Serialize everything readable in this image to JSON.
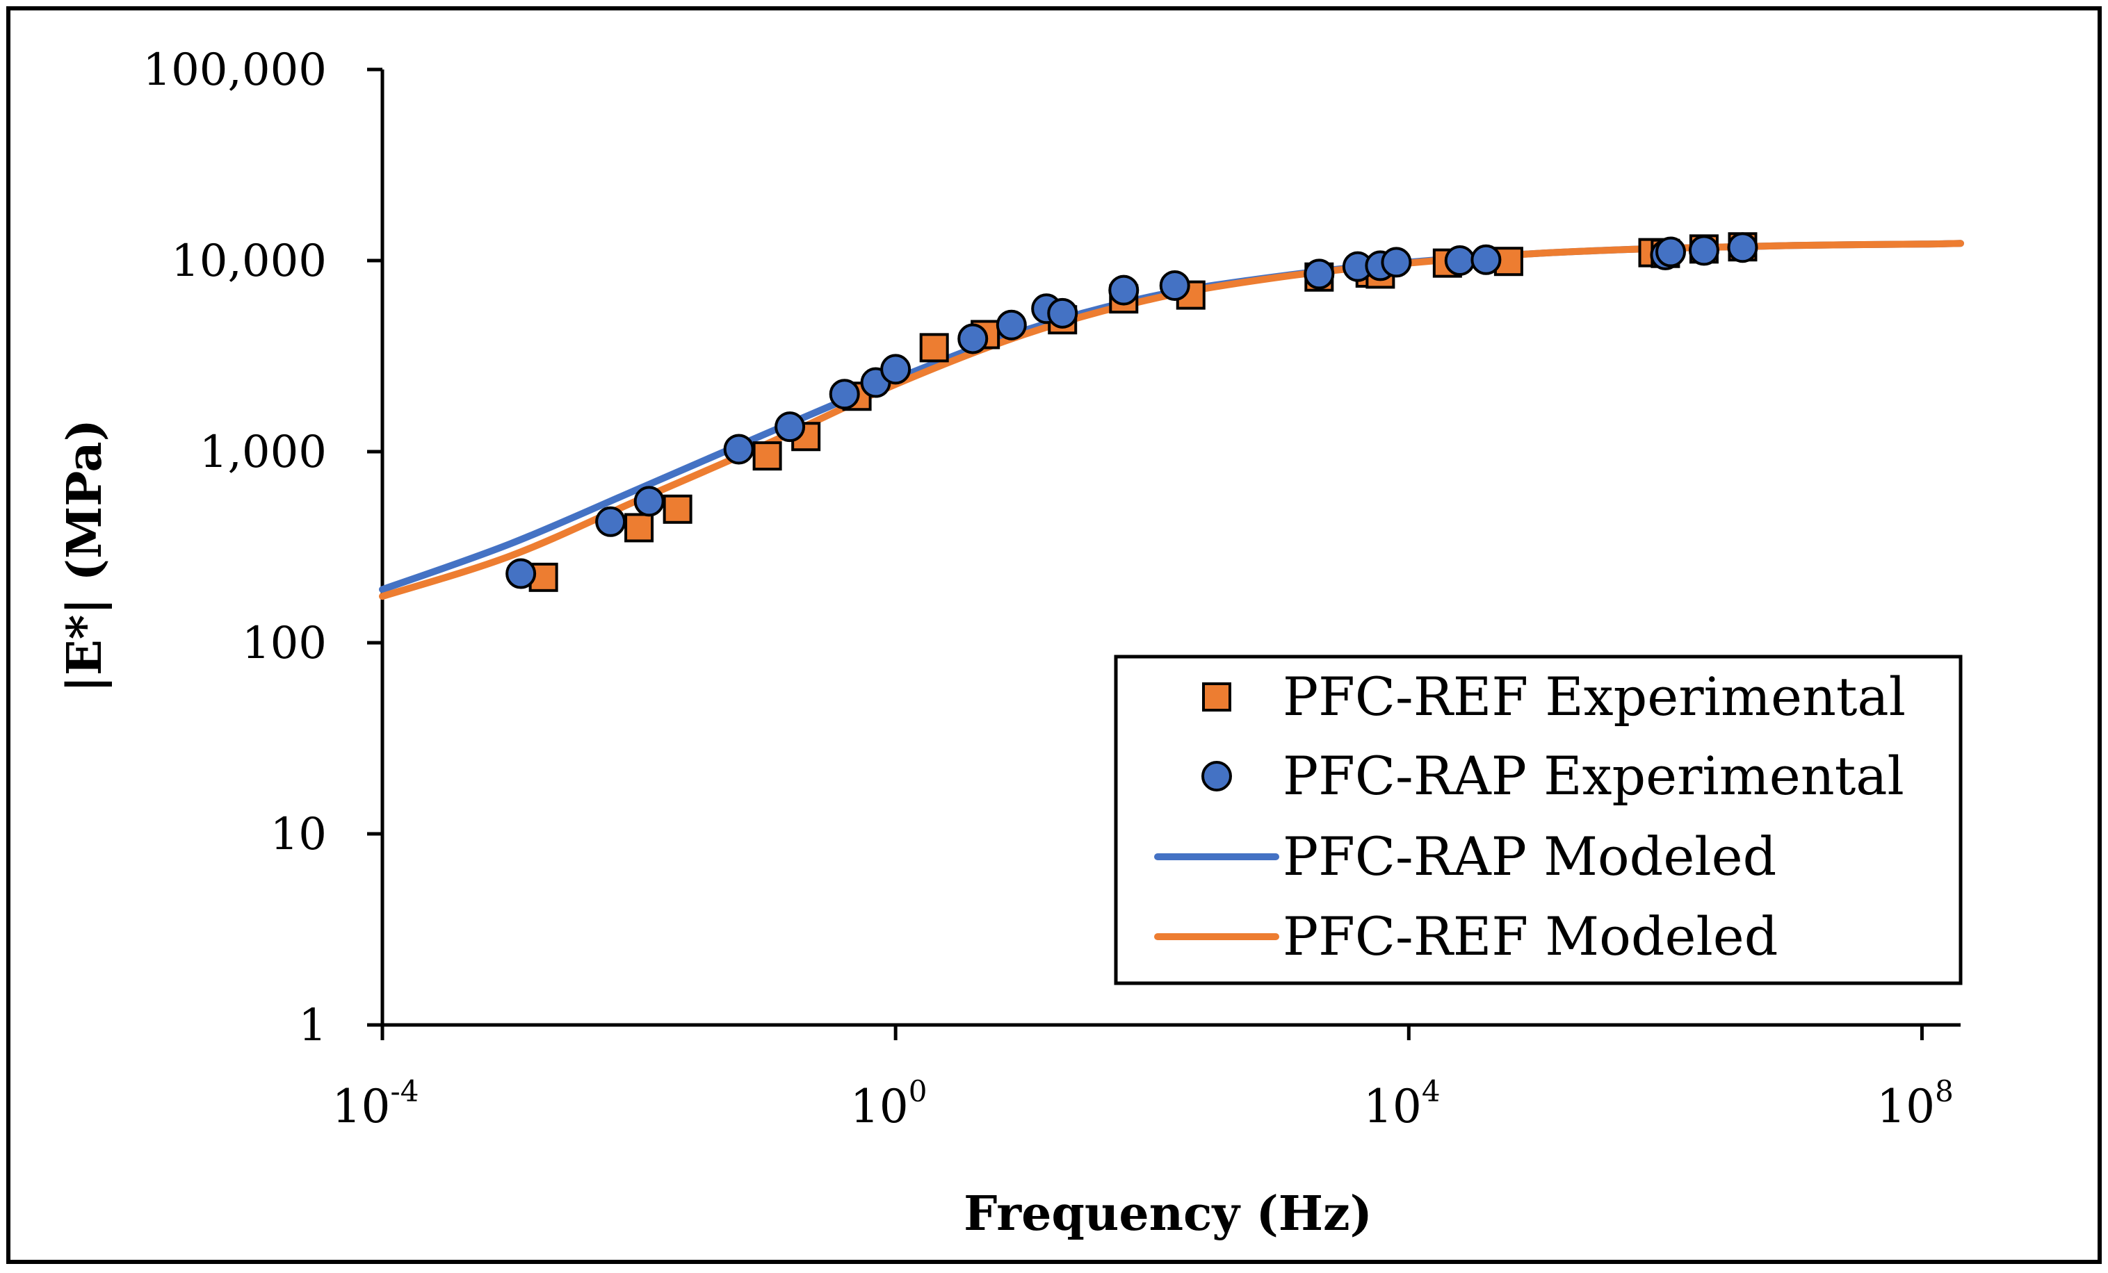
{
  "chart_data": {
    "type": "scatter",
    "title": "",
    "xlabel": "Frequency (Hz)",
    "ylabel": "|E*| (MPa)",
    "x_scale": "log",
    "y_scale": "log",
    "xlim": [
      0.0001,
      200000000
    ],
    "ylim": [
      1,
      100000
    ],
    "x_ticks": [
      {
        "value": 0.0001,
        "base": "10",
        "exp": "-4"
      },
      {
        "value": 1,
        "base": "10",
        "exp": "0"
      },
      {
        "value": 10000,
        "base": "10",
        "exp": "4"
      },
      {
        "value": 100000000,
        "base": "10",
        "exp": "8"
      }
    ],
    "y_ticks": [
      {
        "value": 1,
        "label": "1"
      },
      {
        "value": 10,
        "label": "10"
      },
      {
        "value": 100,
        "label": "100"
      },
      {
        "value": 1000,
        "label": "1,000"
      },
      {
        "value": 10000,
        "label": "10,000"
      },
      {
        "value": 100000,
        "label": "100,000"
      }
    ],
    "grid": false,
    "legend_position": "bottom-right",
    "series": [
      {
        "name": "PFC-REF Experimental",
        "kind": "marker-square",
        "color": "#ED7D31",
        "points": [
          [
            0.0018,
            220
          ],
          [
            0.01,
            400
          ],
          [
            0.02,
            500
          ],
          [
            0.1,
            950
          ],
          [
            0.2,
            1200
          ],
          [
            0.5,
            1950
          ],
          [
            2,
            3500
          ],
          [
            5,
            4100
          ],
          [
            20,
            4900
          ],
          [
            60,
            6300
          ],
          [
            200,
            6600
          ],
          [
            2000,
            8200
          ],
          [
            5000,
            8600
          ],
          [
            6000,
            8500
          ],
          [
            20000,
            9700
          ],
          [
            60000,
            9900
          ],
          [
            800000,
            11000
          ],
          [
            1000000,
            10900
          ],
          [
            2000000,
            11500
          ],
          [
            4000000,
            11800
          ]
        ]
      },
      {
        "name": "PFC-RAP Experimental",
        "kind": "marker-circle",
        "color": "#4472C4",
        "points": [
          [
            0.0012,
            230
          ],
          [
            0.006,
            430
          ],
          [
            0.012,
            550
          ],
          [
            0.06,
            1030
          ],
          [
            0.15,
            1350
          ],
          [
            0.4,
            2000
          ],
          [
            0.7,
            2300
          ],
          [
            1,
            2700
          ],
          [
            4,
            3900
          ],
          [
            8,
            4600
          ],
          [
            15,
            5600
          ],
          [
            20,
            5300
          ],
          [
            60,
            7000
          ],
          [
            150,
            7400
          ],
          [
            2000,
            8500
          ],
          [
            4000,
            9300
          ],
          [
            6000,
            9400
          ],
          [
            8000,
            9800
          ],
          [
            25000,
            10000
          ],
          [
            40000,
            10100
          ],
          [
            1000000,
            10700
          ],
          [
            1100000,
            11100
          ],
          [
            2000000,
            11300
          ],
          [
            4000000,
            11700
          ]
        ]
      },
      {
        "name": "PFC-RAP Modeled",
        "kind": "line",
        "color": "#4472C4",
        "points": [
          [
            0.0001,
            190
          ],
          [
            0.001,
            330
          ],
          [
            0.01,
            640
          ],
          [
            0.1,
            1250
          ],
          [
            1,
            2400
          ],
          [
            10,
            4300
          ],
          [
            100,
            6500
          ],
          [
            1000,
            8300
          ],
          [
            10000,
            9800
          ],
          [
            100000,
            10900
          ],
          [
            1000000,
            11600
          ],
          [
            10000000,
            12000
          ],
          [
            100000000,
            12200
          ],
          [
            200000000,
            12300
          ]
        ]
      },
      {
        "name": "PFC-REF Modeled",
        "kind": "line",
        "color": "#ED7D31",
        "points": [
          [
            0.0001,
            175
          ],
          [
            0.001,
            285
          ],
          [
            0.01,
            560
          ],
          [
            0.1,
            1100
          ],
          [
            1,
            2250
          ],
          [
            10,
            4100
          ],
          [
            100,
            6300
          ],
          [
            1000,
            8200
          ],
          [
            10000,
            9700
          ],
          [
            100000,
            10900
          ],
          [
            1000000,
            11600
          ],
          [
            10000000,
            12000
          ],
          [
            100000000,
            12200
          ],
          [
            200000000,
            12300
          ]
        ]
      }
    ]
  }
}
